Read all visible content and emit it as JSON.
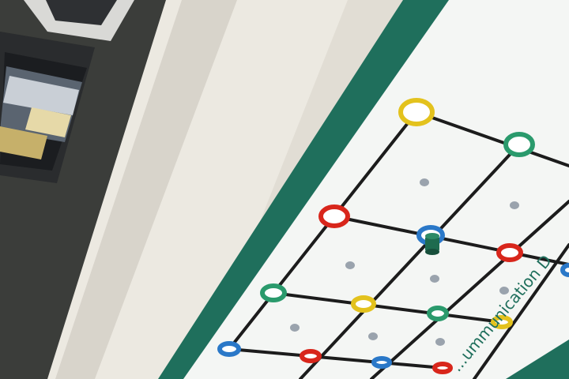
{
  "colors": {
    "floor": "#3b3d3a",
    "laptop_body": "#2a2c2e",
    "laptop_screen": "#1b1d20",
    "keyboard_deck": "#d9d9d6",
    "fabric": "#ece9e1",
    "fabric_fold": "#d8d4cb",
    "mat_border": "#1f6f5c",
    "mat": "#f4f6f4",
    "grid_line": "#1c1c1c",
    "dot": "#9aa3ad",
    "ring_yellow": "#e3c21d",
    "ring_green": "#2a9a6c",
    "ring_red": "#d8261b",
    "ring_blue": "#2a78c8",
    "robot_body": "#1e6b4f"
  },
  "mat_text": "...ummunication D",
  "rings": [
    {
      "color": "yellow",
      "name": "ring-top-corner"
    },
    {
      "color": "green",
      "name": "ring-top-right"
    },
    {
      "color": "red",
      "name": "ring-mid-left"
    },
    {
      "color": "blue",
      "name": "ring-center-robot"
    },
    {
      "color": "red",
      "name": "ring-mid-right"
    },
    {
      "color": "green",
      "name": "ring-lower-left"
    },
    {
      "color": "yellow",
      "name": "ring-lower-center"
    },
    {
      "color": "green",
      "name": "ring-lower-mid"
    },
    {
      "color": "yellow",
      "name": "ring-lower-right"
    },
    {
      "color": "blue",
      "name": "ring-bottom-left"
    },
    {
      "color": "red",
      "name": "ring-bottom-a"
    },
    {
      "color": "blue",
      "name": "ring-bottom-b"
    },
    {
      "color": "red",
      "name": "ring-bottom-c"
    }
  ]
}
